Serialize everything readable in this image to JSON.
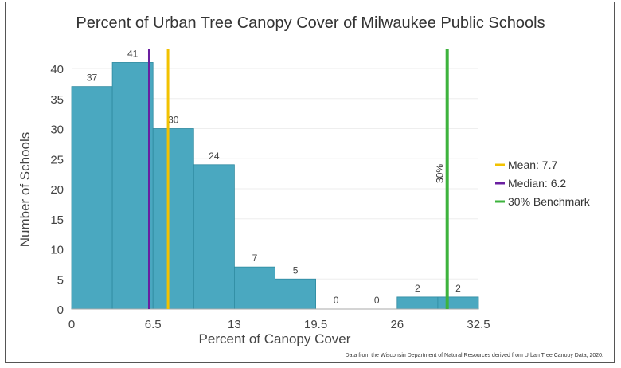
{
  "chart_data": {
    "type": "bar",
    "title": "Percent of Urban Tree Canopy Cover of Milwaukee Public Schools",
    "xlabel": "Percent of Canopy Cover",
    "ylabel": "Number of Schools",
    "bin_edges": [
      0,
      3.25,
      6.5,
      9.75,
      13,
      16.25,
      19.5,
      22.75,
      26,
      29.25,
      32.5
    ],
    "values": [
      37,
      41,
      30,
      24,
      7,
      5,
      0,
      0,
      2,
      2
    ],
    "xticks": [
      "0",
      "6.5",
      "13",
      "19.5",
      "26",
      "32.5"
    ],
    "xtick_values": [
      0,
      6.5,
      13,
      19.5,
      26,
      32.5
    ],
    "yticks": [
      0,
      5,
      10,
      15,
      20,
      25,
      30,
      35,
      40
    ],
    "xlim": [
      0,
      32.5
    ],
    "ylim": [
      0,
      43
    ],
    "grid": true,
    "bar_color": "#4aa8c0",
    "reference_lines": [
      {
        "name": "Mean: 7.7",
        "value": 7.7,
        "color": "#f2c200"
      },
      {
        "name": "Median: 6.2",
        "value": 6.2,
        "color": "#6a1fa0"
      },
      {
        "name": "30% Benchmark",
        "value": 30,
        "color": "#3db33d",
        "label": "30%"
      }
    ],
    "legend_position": "right",
    "source_note": "Data from the Wisconsin Department of Natural Resources derived from Urban Tree Canopy Data, 2020."
  }
}
